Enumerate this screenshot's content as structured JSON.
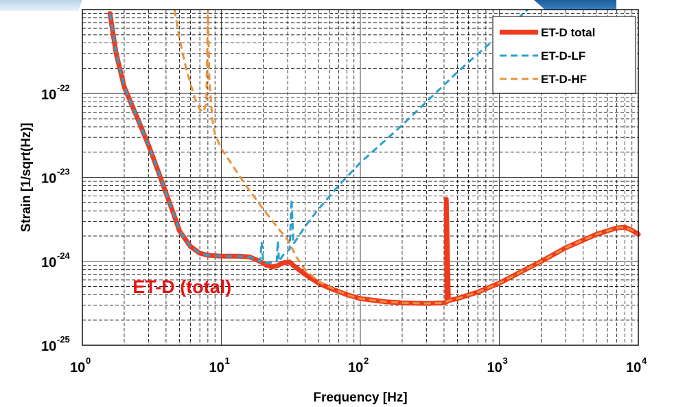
{
  "chart_data": {
    "type": "line",
    "xscale": "log",
    "yscale": "log",
    "xlim": [
      1,
      10000
    ],
    "ylim": [
      1e-25,
      1e-21
    ],
    "xlabel": "Frequency [Hz]",
    "ylabel": "Strain [1/sqrt(Hz)]",
    "grid": true,
    "legend_position": "top-right",
    "x_ticks": [
      {
        "value": 1,
        "base": "10",
        "exp": "0"
      },
      {
        "value": 10,
        "base": "10",
        "exp": "1"
      },
      {
        "value": 100,
        "base": "10",
        "exp": "2"
      },
      {
        "value": 1000,
        "base": "10",
        "exp": "3"
      },
      {
        "value": 10000,
        "base": "10",
        "exp": "4"
      }
    ],
    "y_ticks": [
      {
        "value": 1e-25,
        "base": "10",
        "exp": "-25"
      },
      {
        "value": 1e-24,
        "base": "10",
        "exp": "-24"
      },
      {
        "value": 1e-23,
        "base": "10",
        "exp": "-23"
      },
      {
        "value": 1e-22,
        "base": "10",
        "exp": "-22"
      }
    ],
    "annotation": {
      "text": "ET-D (total)",
      "color": "#ee1111",
      "x": 2.3,
      "y": 4.2e-25
    },
    "series": [
      {
        "name": "ET-D total",
        "color": "#f03a1c",
        "style": "solid",
        "points": [
          [
            1.58,
            9e-22
          ],
          [
            1.75,
            3e-22
          ],
          [
            2.0,
            1.2e-22
          ],
          [
            2.5,
            5e-23
          ],
          [
            3.0,
            2.4e-23
          ],
          [
            3.5,
            1.2e-23
          ],
          [
            4.0,
            6.5e-24
          ],
          [
            4.5,
            3.8e-24
          ],
          [
            5.0,
            2.3e-24
          ],
          [
            6.0,
            1.5e-24
          ],
          [
            7.0,
            1.25e-24
          ],
          [
            8.0,
            1.18e-24
          ],
          [
            10,
            1.15e-24
          ],
          [
            13,
            1.15e-24
          ],
          [
            16,
            1.13e-24
          ],
          [
            19,
            1e-24
          ],
          [
            21,
            9e-25
          ],
          [
            23,
            8.6e-25
          ],
          [
            25,
            8.8e-25
          ],
          [
            28,
            9.6e-25
          ],
          [
            31,
            9.8e-25
          ],
          [
            33,
            8.9e-25
          ],
          [
            40,
            7e-25
          ],
          [
            50,
            5.5e-25
          ],
          [
            60,
            4.8e-25
          ],
          [
            80,
            4e-25
          ],
          [
            100,
            3.6e-25
          ],
          [
            150,
            3.3e-25
          ],
          [
            200,
            3.2e-25
          ],
          [
            300,
            3.15e-25
          ],
          [
            400,
            3.2e-25
          ],
          [
            420,
            3.3e-25
          ],
          [
            415,
            5.5e-24
          ],
          [
            430,
            3.4e-25
          ],
          [
            500,
            3.6e-25
          ],
          [
            700,
            4.3e-25
          ],
          [
            1000,
            5.5e-25
          ],
          [
            1500,
            7.8e-25
          ],
          [
            2000,
            1e-24
          ],
          [
            3000,
            1.45e-24
          ],
          [
            5000,
            2.1e-24
          ],
          [
            7000,
            2.5e-24
          ],
          [
            8000,
            2.55e-24
          ],
          [
            9000,
            2.35e-24
          ],
          [
            10000,
            2.1e-24
          ]
        ]
      },
      {
        "name": "ET-D-LF",
        "color": "#2aa0d0",
        "style": "dashed",
        "points": [
          [
            1.58,
            9e-22
          ],
          [
            1.75,
            3e-22
          ],
          [
            2.0,
            1.2e-22
          ],
          [
            2.5,
            5e-23
          ],
          [
            3.0,
            2.4e-23
          ],
          [
            3.5,
            1.2e-23
          ],
          [
            4.0,
            6.5e-24
          ],
          [
            4.5,
            3.8e-24
          ],
          [
            5.0,
            2.3e-24
          ],
          [
            6.0,
            1.5e-24
          ],
          [
            7.0,
            1.25e-24
          ],
          [
            8.0,
            1.18e-24
          ],
          [
            10,
            1.15e-24
          ],
          [
            13,
            1.15e-24
          ],
          [
            16,
            1.13e-24
          ],
          [
            19,
            1e-24
          ],
          [
            19.5,
            1.7e-24
          ],
          [
            20,
            1e-24
          ],
          [
            21,
            9.5e-25
          ],
          [
            23,
            9.6e-25
          ],
          [
            25,
            1e-24
          ],
          [
            25.5,
            1.75e-24
          ],
          [
            26,
            1e-24
          ],
          [
            28,
            1.2e-24
          ],
          [
            31,
            1.4e-24
          ],
          [
            32,
            5.5e-24
          ],
          [
            33,
            1.6e-24
          ],
          [
            40,
            2.6e-24
          ],
          [
            50,
            4.2e-24
          ],
          [
            70,
            8e-24
          ],
          [
            100,
            1.5e-23
          ],
          [
            200,
            4.2e-23
          ],
          [
            300,
            8e-23
          ],
          [
            500,
            1.8e-22
          ],
          [
            800,
            3.6e-22
          ],
          [
            1200,
            6.5e-22
          ],
          [
            1600,
            1e-21
          ]
        ]
      },
      {
        "name": "ET-D-HF",
        "color": "#e8923a",
        "style": "dashed",
        "points": [
          [
            4.6,
            1e-21
          ],
          [
            5.0,
            4.5e-22
          ],
          [
            5.5,
            2.2e-22
          ],
          [
            6.0,
            1.3e-22
          ],
          [
            6.5,
            8.5e-23
          ],
          [
            7.0,
            6.5e-23
          ],
          [
            7.4,
            6e-23
          ],
          [
            7.8,
            7.5e-23
          ],
          [
            8.0,
            1e-21
          ],
          [
            8.2,
            1.5e-22
          ],
          [
            8.6,
            5e-23
          ],
          [
            9.0,
            3.3e-23
          ],
          [
            10,
            2.2e-23
          ],
          [
            12,
            1.4e-23
          ],
          [
            15,
            8e-24
          ],
          [
            20,
            4.2e-24
          ],
          [
            25,
            2.6e-24
          ],
          [
            30,
            1.8e-24
          ],
          [
            35,
            1.1e-24
          ],
          [
            40,
            8e-25
          ],
          [
            50,
            5.7e-25
          ],
          [
            60,
            4.9e-25
          ],
          [
            80,
            4e-25
          ],
          [
            100,
            3.6e-25
          ],
          [
            150,
            3.3e-25
          ],
          [
            200,
            3.2e-25
          ],
          [
            300,
            3.15e-25
          ],
          [
            400,
            3.2e-25
          ],
          [
            430,
            3.4e-25
          ],
          [
            500,
            3.6e-25
          ],
          [
            700,
            4.3e-25
          ],
          [
            1000,
            5.5e-25
          ],
          [
            1500,
            7.8e-25
          ],
          [
            2000,
            1e-24
          ],
          [
            3000,
            1.45e-24
          ],
          [
            5000,
            2.1e-24
          ],
          [
            7000,
            2.5e-24
          ],
          [
            8000,
            2.55e-24
          ],
          [
            9000,
            2.35e-24
          ],
          [
            10000,
            2.1e-24
          ]
        ]
      }
    ]
  }
}
